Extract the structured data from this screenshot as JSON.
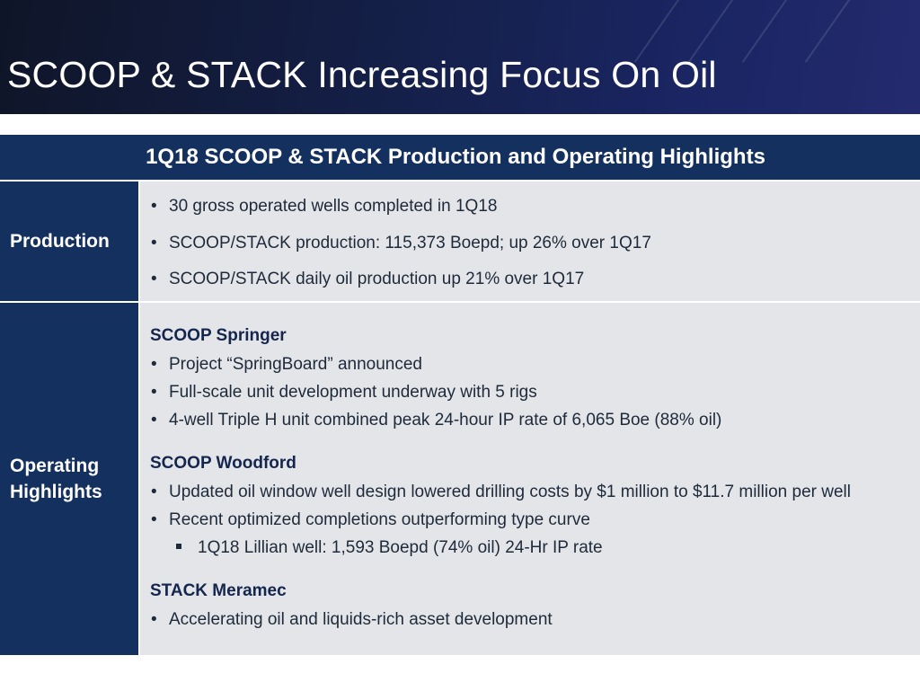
{
  "slide": {
    "title": "SCOOP & STACK Increasing Focus On Oil"
  },
  "table": {
    "header": "1Q18 SCOOP & STACK Production and Operating Highlights",
    "production": {
      "label": "Production",
      "bullets": [
        "30 gross operated wells completed in 1Q18",
        "SCOOP/STACK production: 115,373 Boepd; up 26% over 1Q17",
        "SCOOP/STACK daily oil production up 21% over 1Q17"
      ]
    },
    "operating": {
      "label_line1": "Operating",
      "label_line2": "Highlights",
      "springer": {
        "heading": "SCOOP Springer",
        "bullets": [
          "Project “SpringBoard” announced",
          "Full-scale unit development underway with 5 rigs",
          "4-well Triple H unit combined peak 24-hour IP rate of 6,065 Boe (88% oil)"
        ]
      },
      "woodford": {
        "heading": "SCOOP Woodford",
        "bullets": [
          "Updated oil window well design lowered drilling costs by $1 million to $11.7 million per well",
          "Recent optimized completions outperforming type curve"
        ],
        "sub_bullet": "1Q18 Lillian well: 1,593 Boepd (74% oil) 24-Hr IP rate"
      },
      "meramec": {
        "heading": "STACK Meramec",
        "bullets": [
          "Accelerating oil and liquids-rich asset development"
        ]
      }
    },
    "bullet_char": "•"
  },
  "colors": {
    "header_bg": "#14305f",
    "body_bg": "#e4e5e9",
    "text": "#1e2a3a"
  }
}
